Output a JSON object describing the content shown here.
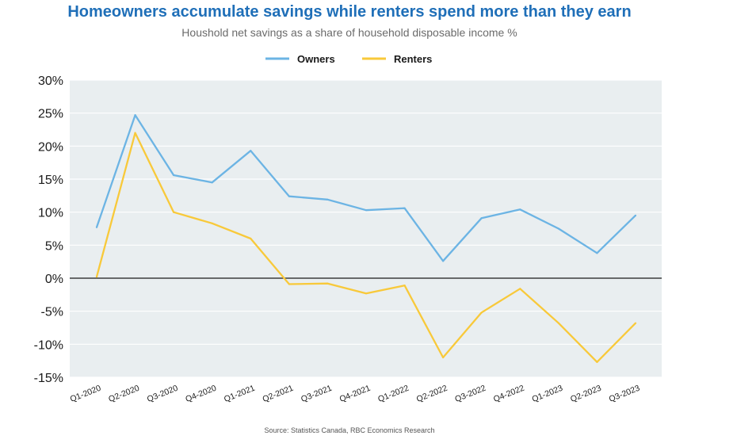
{
  "chart_data": {
    "type": "line",
    "title": "Homeowners accumulate savings while renters spend more than they earn",
    "subtitle": "Houshold net savings as a share of household disposable income %",
    "categories": [
      "Q1-2020",
      "Q2-2020",
      "Q3-2020",
      "Q4-2020",
      "Q1-2021",
      "Q2-2021",
      "Q3-2021",
      "Q4-2021",
      "Q1-2022",
      "Q2-2022",
      "Q3-2022",
      "Q4-2022",
      "Q1-2023",
      "Q2-2023",
      "Q3-2023"
    ],
    "series": [
      {
        "name": "Owners",
        "color": "#6cb4e4",
        "values": [
          7.7,
          24.7,
          15.6,
          14.5,
          19.3,
          12.4,
          11.9,
          10.3,
          10.6,
          2.6,
          9.1,
          10.4,
          7.5,
          3.8,
          9.5
        ]
      },
      {
        "name": "Renters",
        "color": "#f8c93a",
        "values": [
          0.2,
          22.0,
          10.0,
          8.3,
          6.0,
          -0.9,
          -0.8,
          -2.3,
          -1.1,
          -12.0,
          -5.2,
          -1.6,
          -6.8,
          -12.7,
          -6.8
        ]
      }
    ],
    "y_ticks": [
      30,
      25,
      20,
      15,
      10,
      5,
      0,
      -5,
      -10,
      -15
    ],
    "y_tick_labels": [
      "30%",
      "25%",
      "20%",
      "15%",
      "10%",
      "5%",
      "0%",
      "-5%",
      "-10%",
      "-15%"
    ],
    "ylim": [
      -15,
      30
    ],
    "xlabel": "",
    "ylabel": "",
    "legend": "top-center",
    "grid": true,
    "source": "Source: Statistics Canada, RBC Economics Research"
  }
}
